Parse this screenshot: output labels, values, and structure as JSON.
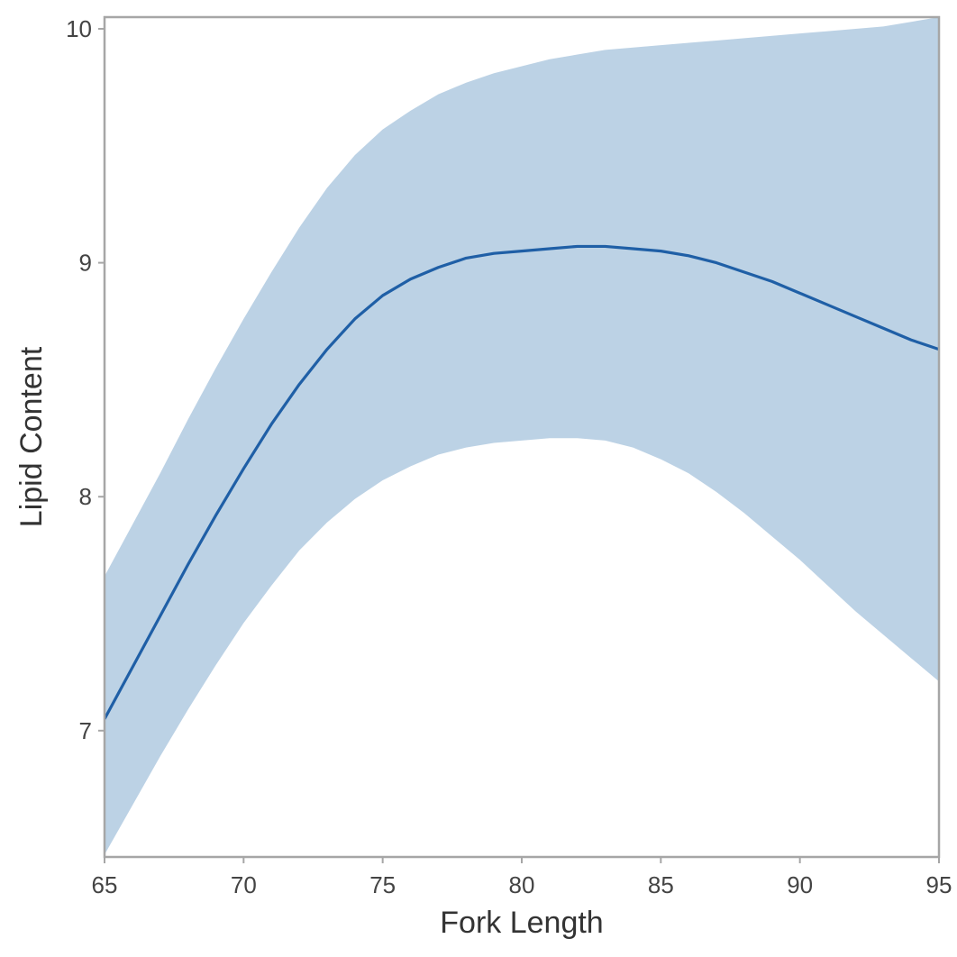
{
  "chart_data": {
    "type": "line",
    "title": "",
    "xlabel": "Fork Length",
    "ylabel": "Lipid Content",
    "xlim": [
      65,
      95
    ],
    "ylim": [
      6.46,
      10.05
    ],
    "xticks": [
      65,
      70,
      75,
      80,
      85,
      90,
      95
    ],
    "yticks": [
      7,
      8,
      9,
      10
    ],
    "grid": false,
    "legend": "none",
    "colors": {
      "line": "#1f5fa6",
      "band": "#bcd2e5",
      "frame": "#a6a6a6"
    },
    "series": [
      {
        "x": [
          65,
          66,
          67,
          68,
          69,
          70,
          71,
          72,
          73,
          74,
          75,
          76,
          77,
          78,
          79,
          80,
          81,
          82,
          83,
          84,
          85,
          86,
          87,
          88,
          89,
          90,
          91,
          92,
          93,
          94,
          95
        ],
        "y": [
          7.05,
          7.27,
          7.49,
          7.71,
          7.92,
          8.12,
          8.31,
          8.48,
          8.63,
          8.76,
          8.86,
          8.93,
          8.98,
          9.02,
          9.04,
          9.05,
          9.06,
          9.07,
          9.07,
          9.06,
          9.05,
          9.03,
          9.0,
          8.96,
          8.92,
          8.87,
          8.82,
          8.77,
          8.72,
          8.67,
          8.63
        ],
        "lower": [
          6.47,
          6.68,
          6.89,
          7.09,
          7.28,
          7.46,
          7.62,
          7.77,
          7.89,
          7.99,
          8.07,
          8.13,
          8.18,
          8.21,
          8.23,
          8.24,
          8.25,
          8.25,
          8.24,
          8.21,
          8.16,
          8.1,
          8.02,
          7.93,
          7.83,
          7.73,
          7.62,
          7.51,
          7.41,
          7.31,
          7.21
        ],
        "upper": [
          7.66,
          7.88,
          8.1,
          8.33,
          8.55,
          8.76,
          8.96,
          9.15,
          9.32,
          9.46,
          9.57,
          9.65,
          9.72,
          9.77,
          9.81,
          9.84,
          9.87,
          9.89,
          9.91,
          9.92,
          9.93,
          9.94,
          9.95,
          9.96,
          9.97,
          9.98,
          9.99,
          10.0,
          10.01,
          10.03,
          10.05
        ]
      }
    ]
  }
}
